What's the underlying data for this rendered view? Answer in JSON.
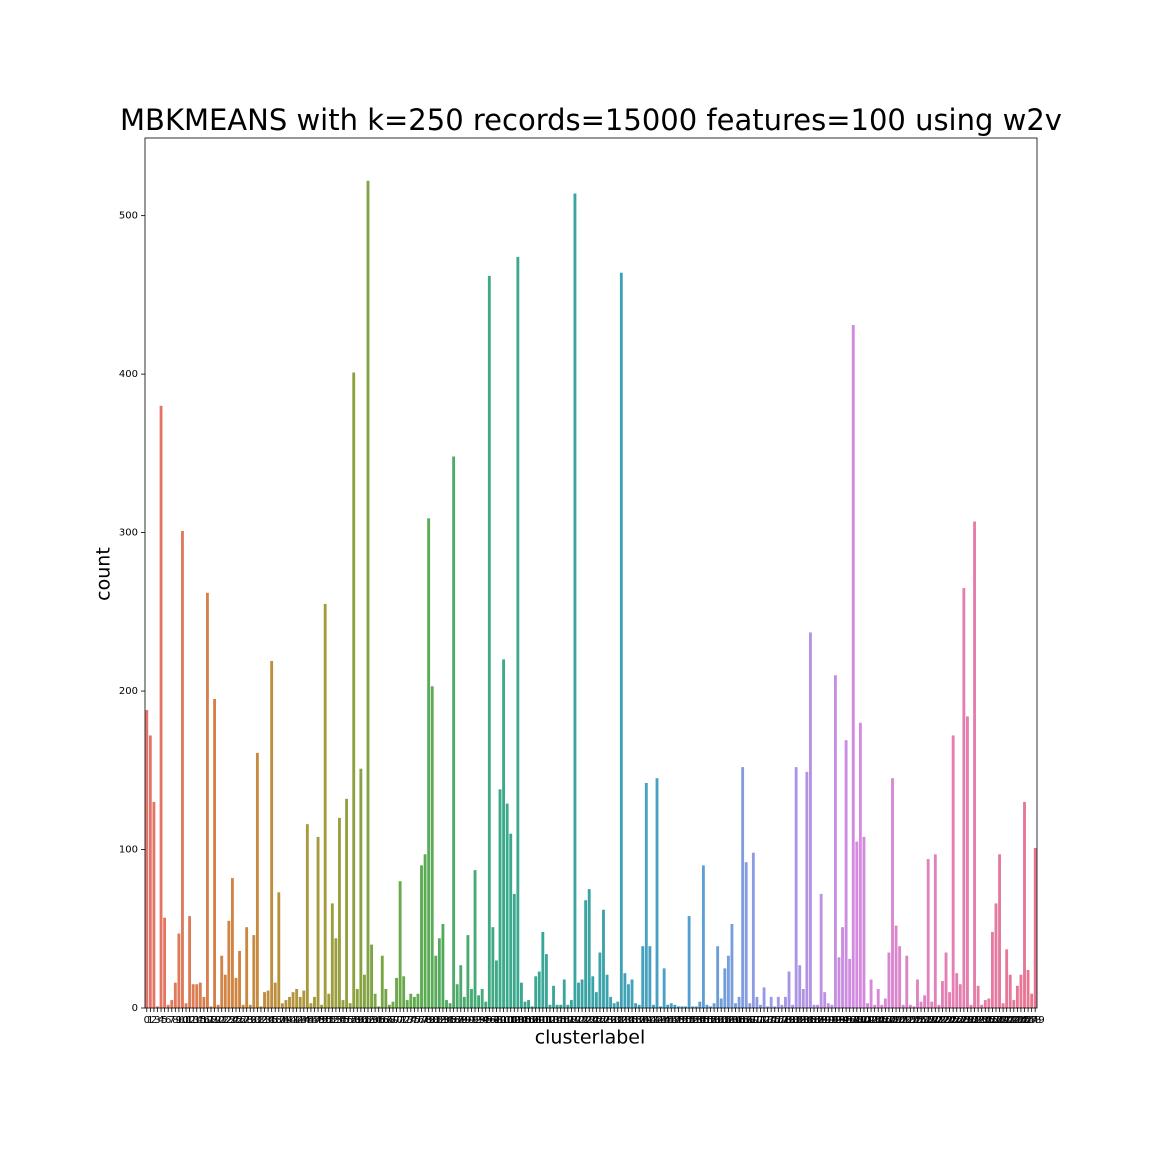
{
  "chart_data": {
    "type": "bar",
    "title": "MBKMEANS with k=250 records=15000 features=100 using w2v",
    "x_label": "clusterlabel",
    "y_label": "count",
    "categories": [
      0,
      1,
      2,
      3,
      4,
      5,
      6,
      7,
      8,
      9,
      10,
      11,
      12,
      13,
      14,
      15,
      16,
      17,
      18,
      19,
      20,
      21,
      22,
      23,
      24,
      25,
      26,
      27,
      28,
      29,
      30,
      31,
      32,
      33,
      34,
      35,
      36,
      37,
      38,
      39,
      40,
      41,
      42,
      43,
      44,
      45,
      46,
      47,
      48,
      49,
      50,
      51,
      52,
      53,
      54,
      55,
      56,
      57,
      58,
      59,
      60,
      61,
      62,
      63,
      64,
      65,
      66,
      67,
      68,
      69,
      70,
      71,
      72,
      73,
      74,
      75,
      76,
      77,
      78,
      79,
      80,
      81,
      82,
      83,
      84,
      85,
      86,
      87,
      88,
      89,
      90,
      91,
      92,
      93,
      94,
      95,
      96,
      97,
      98,
      99,
      100,
      101,
      102,
      103,
      104,
      105,
      106,
      107,
      108,
      109,
      110,
      111,
      112,
      113,
      114,
      115,
      116,
      117,
      118,
      119,
      120,
      121,
      122,
      123,
      124,
      125,
      126,
      127,
      128,
      129,
      130,
      131,
      132,
      133,
      134,
      135,
      136,
      137,
      138,
      139,
      140,
      141,
      142,
      143,
      144,
      145,
      146,
      147,
      148,
      149,
      150,
      151,
      152,
      153,
      154,
      155,
      156,
      157,
      158,
      159,
      160,
      161,
      162,
      163,
      164,
      165,
      166,
      167,
      168,
      169,
      170,
      171,
      172,
      173,
      174,
      175,
      176,
      177,
      178,
      179,
      180,
      181,
      182,
      183,
      184,
      185,
      186,
      187,
      188,
      189,
      190,
      191,
      192,
      193,
      194,
      195,
      196,
      197,
      198,
      199,
      200,
      201,
      202,
      203,
      204,
      205,
      206,
      207,
      208,
      209,
      210,
      211,
      212,
      213,
      214,
      215,
      216,
      217,
      218,
      219,
      220,
      221,
      222,
      223,
      224,
      225,
      226,
      227,
      228,
      229,
      230,
      231,
      232,
      233,
      234,
      235,
      236,
      237,
      238,
      239,
      240,
      241,
      242,
      243,
      244,
      245,
      246,
      247,
      248,
      249
    ],
    "values": [
      188,
      172,
      130,
      1,
      380,
      57,
      2,
      5,
      16,
      47,
      301,
      3,
      58,
      15,
      15,
      16,
      7,
      262,
      1,
      195,
      2,
      33,
      21,
      55,
      82,
      19,
      36,
      2,
      51,
      2,
      46,
      161,
      1,
      10,
      11,
      219,
      16,
      73,
      3,
      5,
      7,
      10,
      12,
      7,
      11,
      116,
      3,
      7,
      108,
      2,
      255,
      9,
      66,
      44,
      120,
      5,
      132,
      3,
      401,
      12,
      151,
      21,
      522,
      40,
      9,
      1,
      33,
      12,
      2,
      4,
      19,
      80,
      20,
      5,
      9,
      7,
      9,
      90,
      97,
      309,
      203,
      33,
      44,
      53,
      5,
      3,
      348,
      15,
      27,
      7,
      46,
      12,
      87,
      8,
      12,
      4,
      462,
      51,
      30,
      138,
      220,
      129,
      110,
      72,
      474,
      16,
      4,
      5,
      1,
      20,
      23,
      48,
      34,
      2,
      14,
      2,
      2,
      18,
      2,
      5,
      514,
      16,
      18,
      68,
      75,
      20,
      10,
      35,
      62,
      21,
      7,
      3,
      4,
      464,
      22,
      15,
      18,
      3,
      2,
      39,
      142,
      39,
      2,
      145,
      1,
      25,
      2,
      3,
      2,
      1,
      1,
      1,
      58,
      1,
      1,
      4,
      90,
      2,
      1,
      3,
      39,
      6,
      25,
      33,
      53,
      3,
      7,
      152,
      92,
      3,
      98,
      7,
      2,
      13,
      1,
      7,
      1,
      7,
      2,
      7,
      23,
      2,
      152,
      27,
      12,
      149,
      237,
      2,
      2,
      72,
      10,
      3,
      2,
      210,
      32,
      51,
      169,
      31,
      431,
      105,
      180,
      108,
      3,
      18,
      2,
      12,
      2,
      6,
      35,
      145,
      52,
      39,
      2,
      33,
      2,
      1,
      18,
      4,
      8,
      94,
      4,
      97,
      2,
      17,
      35,
      10,
      172,
      22,
      15,
      265,
      184,
      2,
      307,
      14,
      2,
      5,
      6,
      48,
      66,
      97,
      3,
      37,
      21,
      5,
      14,
      21,
      130,
      24,
      9,
      101
    ],
    "palette": [
      "#e7726a",
      "#d0853f",
      "#a39c3b",
      "#5fab4a",
      "#3ca98a",
      "#3aa3a6",
      "#4aa0cf",
      "#9a9ae6",
      "#d38ae0",
      "#e47fb6",
      "#e7758f"
    ],
    "ylim": [
      0,
      549
    ],
    "yticks": [
      0,
      100,
      200,
      300,
      400,
      500
    ],
    "grid": false
  }
}
